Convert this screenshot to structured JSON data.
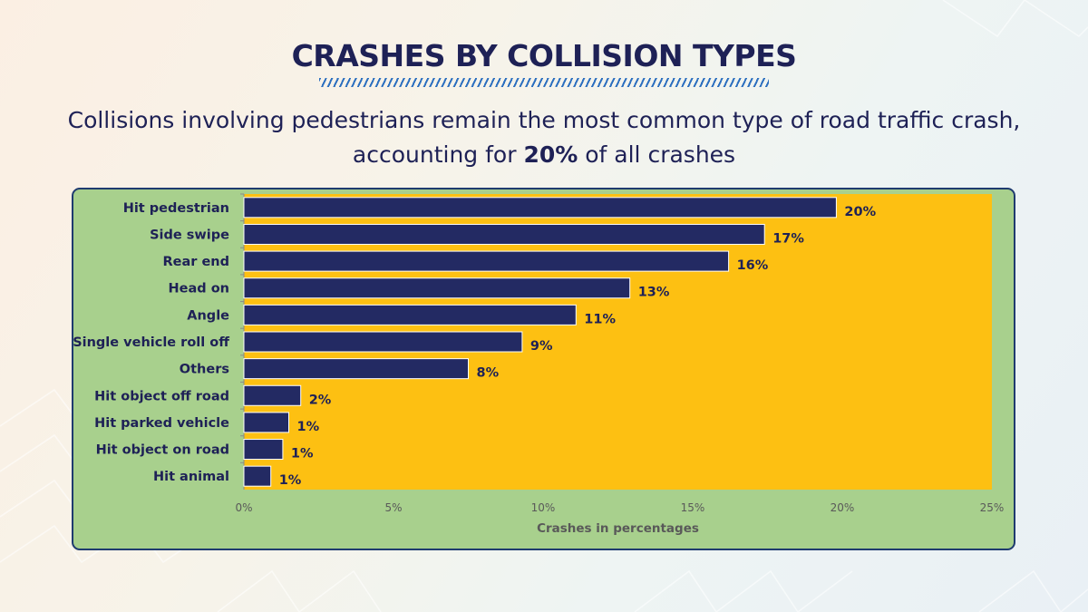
{
  "header": {
    "title": "CRASHES BY COLLISION TYPES",
    "subtitle_line1": "Collisions involving pedestrians remain the most common type of road traffic crash,",
    "subtitle_pre": "accounting for ",
    "subtitle_bold": "20%",
    "subtitle_post": " of all crashes"
  },
  "colors": {
    "panel": "#a8d08d",
    "plot_area": "#fdc012",
    "bar": "#232a63",
    "title": "#1e2156"
  },
  "chart_data": {
    "type": "bar",
    "orientation": "horizontal",
    "categories": [
      "Hit pedestrian",
      "Side swipe",
      "Rear end",
      "Head on",
      "Angle",
      "Single vehicle roll off",
      "Others",
      "Hit object off road",
      "Hit parked vehicle",
      "Hit object on road",
      "Hit animal"
    ],
    "values": [
      19.8,
      17.4,
      16.2,
      12.9,
      11.1,
      9.3,
      7.5,
      1.9,
      1.5,
      1.3,
      0.9
    ],
    "data_labels": [
      "20%",
      "17%",
      "16%",
      "13%",
      "11%",
      "9%",
      "8%",
      "2%",
      "1%",
      "1%",
      "1%"
    ],
    "xlim": [
      0,
      25
    ],
    "xticks": [
      "0%",
      "5%",
      "10%",
      "15%",
      "20%",
      "25%"
    ],
    "xlabel": "Crashes in percentages",
    "ylabel": "",
    "grid": false,
    "legend": "none"
  }
}
